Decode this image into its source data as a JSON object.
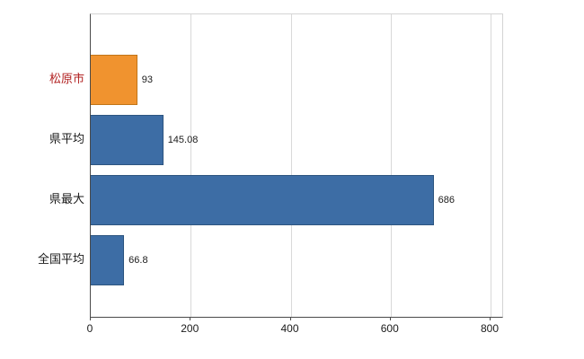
{
  "chart_data": {
    "type": "bar",
    "orientation": "horizontal",
    "title": "",
    "categories": [
      "松原市",
      "県平均",
      "県最大",
      "全国平均"
    ],
    "values": [
      93,
      145.08,
      686,
      66.8
    ],
    "value_labels": [
      "93",
      "145.08",
      "686",
      "66.8"
    ],
    "bar_colors": [
      "#f0932f",
      "#3d6da5",
      "#3d6da5",
      "#3d6da5"
    ],
    "bar_border_colors": [
      "#c17519",
      "#2d5580",
      "#2d5580",
      "#2d5580"
    ],
    "category_label_colors": [
      "#b22222",
      "#1a1a1a",
      "#1a1a1a",
      "#1a1a1a"
    ],
    "xlim": [
      0,
      800
    ],
    "x_ticks": [
      0,
      200,
      400,
      600,
      800
    ],
    "grid": true,
    "legend": "none",
    "background_color": "#ffffff"
  }
}
